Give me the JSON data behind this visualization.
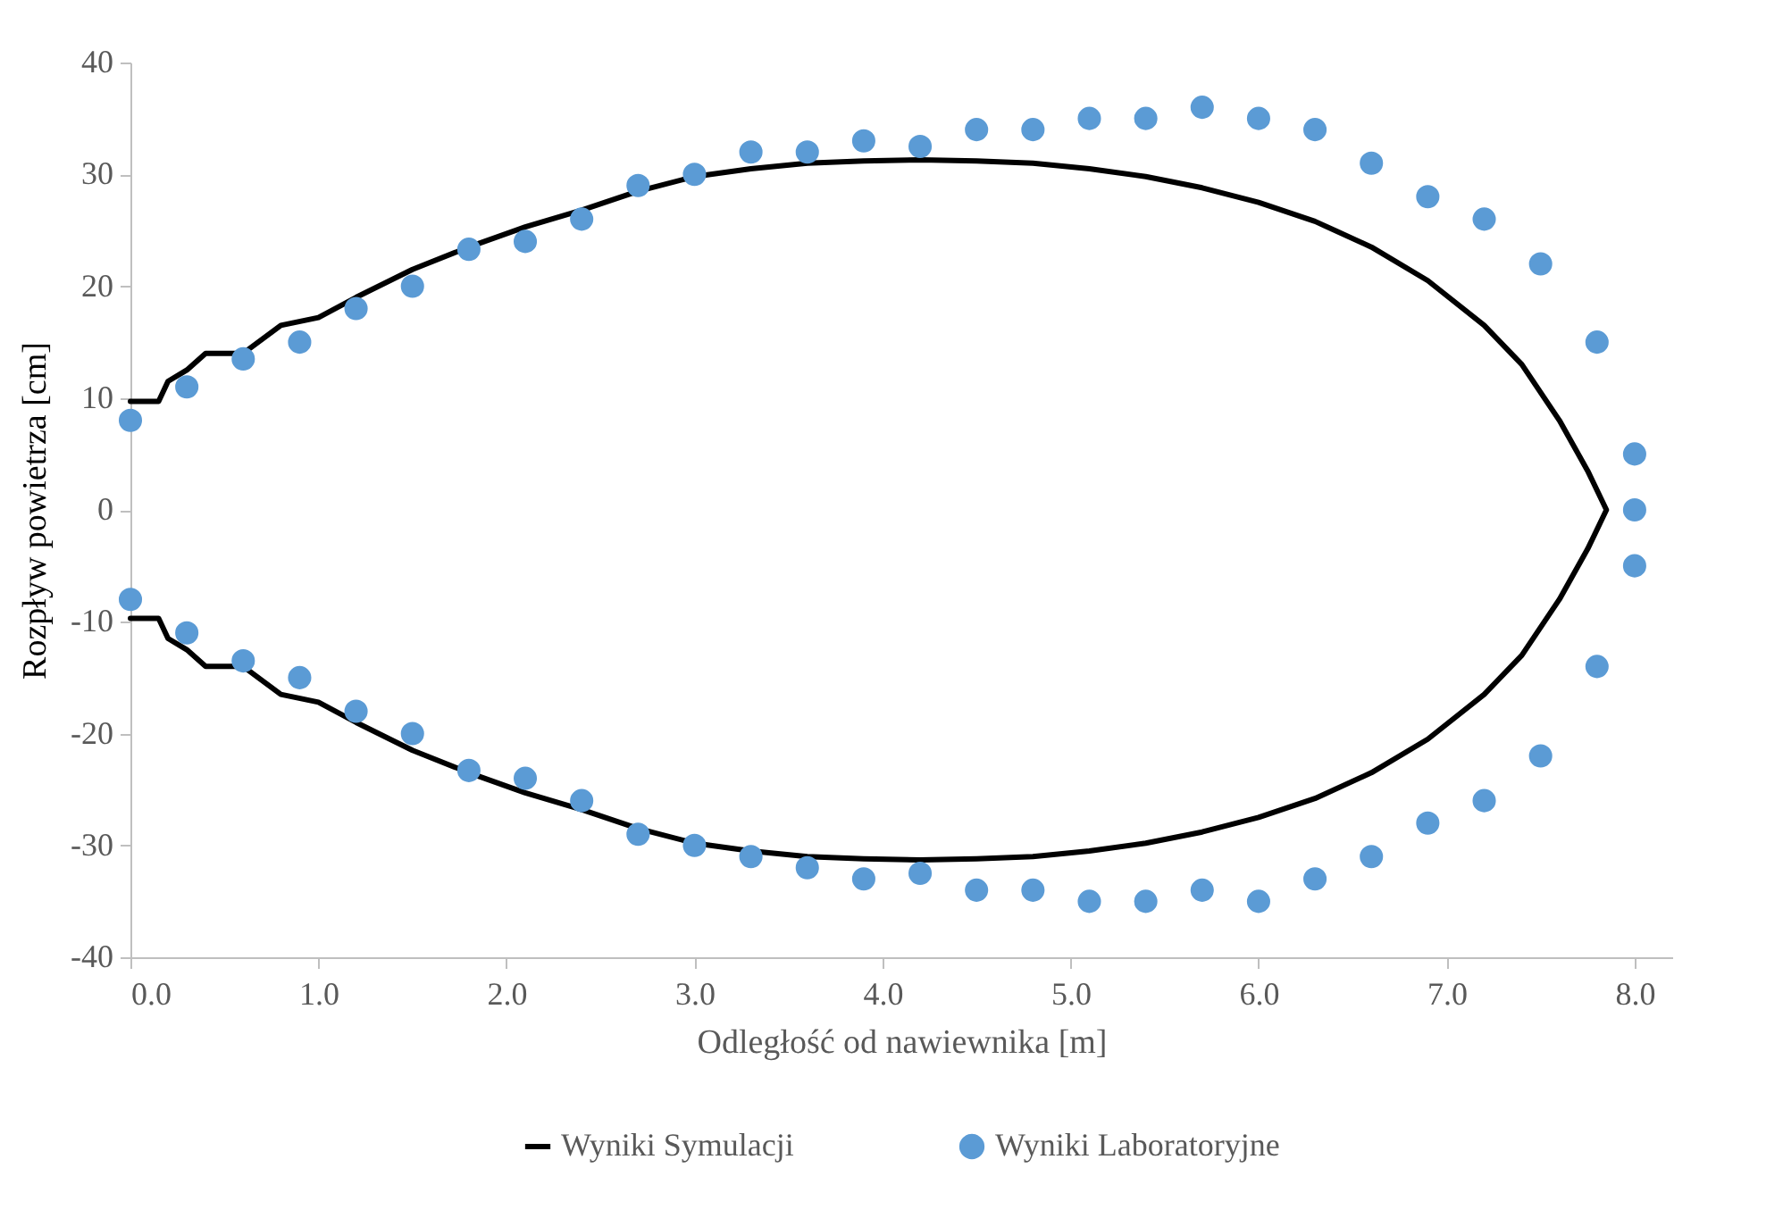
{
  "chart_data": {
    "type": "scatter",
    "xlabel": "Odległość od nawiewnika [m]",
    "ylabel": "Rozpływ powietrza [cm]",
    "xlim": [
      0,
      8.2
    ],
    "xticks": [
      {
        "value": 0,
        "label": "0.0"
      },
      {
        "value": 1,
        "label": "1.0"
      },
      {
        "value": 2,
        "label": "2.0"
      },
      {
        "value": 3,
        "label": "3.0"
      },
      {
        "value": 4,
        "label": "4.0"
      },
      {
        "value": 5,
        "label": "5.0"
      },
      {
        "value": 6,
        "label": "6.0"
      },
      {
        "value": 7,
        "label": "7.0"
      },
      {
        "value": 8,
        "label": "8.0"
      }
    ],
    "ylim": [
      -40,
      40
    ],
    "yticks": [
      -40,
      -30,
      -20,
      -10,
      0,
      10,
      20,
      30,
      40
    ],
    "grid": false,
    "legend": "bottom",
    "series": [
      {
        "name": "Wyniki Symulacji",
        "type": "line",
        "color": "#000000",
        "marker": "none",
        "line_style": "solid",
        "x": [
          0,
          0.15,
          0.2,
          0.3,
          0.4,
          0.6,
          0.8,
          1,
          1.2,
          1.5,
          1.8,
          2.1,
          2.4,
          2.7,
          3,
          3.3,
          3.6,
          3.9,
          4.2,
          4.5,
          4.8,
          5.1,
          5.4,
          5.7,
          6,
          6.3,
          6.6,
          6.9,
          7.2,
          7.4,
          7.6,
          7.75,
          7.85,
          7.75,
          7.6,
          7.4,
          7.2,
          6.9,
          6.6,
          6.3,
          6,
          5.7,
          5.4,
          5.1,
          4.8,
          4.5,
          4.2,
          3.9,
          3.6,
          3.3,
          3,
          2.7,
          2.4,
          2.1,
          1.8,
          1.5,
          1.2,
          1,
          0.8,
          0.6,
          0.4,
          0.3,
          0.2,
          0.15,
          0
        ],
        "values": [
          9.7,
          9.7,
          11.5,
          12.5,
          14,
          14,
          16.5,
          17.2,
          19,
          21.5,
          23.5,
          25.3,
          26.8,
          28.5,
          29.8,
          30.5,
          31,
          31.2,
          31.3,
          31.2,
          31,
          30.5,
          29.8,
          28.8,
          27.5,
          25.8,
          23.5,
          20.5,
          16.5,
          13,
          8,
          3.5,
          0,
          -3.5,
          -8,
          -13,
          -16.5,
          -20.5,
          -23.5,
          -25.8,
          -27.5,
          -28.8,
          -29.8,
          -30.5,
          -31,
          -31.2,
          -31.3,
          -31.2,
          -31,
          -30.5,
          -29.8,
          -28.5,
          -26.8,
          -25.3,
          -23.5,
          -21.5,
          -19,
          -17.2,
          -16.5,
          -14,
          -14,
          -12.5,
          -11.5,
          -9.7,
          -9.7
        ]
      },
      {
        "name": "Wyniki Laboratoryjne",
        "color": "#5b9bd5",
        "marker": "circle",
        "x": [
          0,
          0.3,
          0.6,
          0.9,
          1.2,
          1.5,
          1.8,
          2.1,
          2.4,
          2.7,
          3,
          3.3,
          3.6,
          3.9,
          4.2,
          4.5,
          4.8,
          5.1,
          5.4,
          5.7,
          6,
          6.3,
          6.6,
          6.9,
          7.2,
          7.5,
          7.8,
          8,
          8,
          8,
          7.8,
          7.5,
          7.2,
          6.9,
          6.6,
          6.3,
          6,
          5.7,
          5.4,
          5.1,
          4.8,
          4.5,
          4.2,
          3.9,
          3.6,
          3.3,
          3,
          2.7,
          2.4,
          2.1,
          1.8,
          1.5,
          1.2,
          0.9,
          0.6,
          0.3,
          0
        ],
        "values": [
          8,
          11,
          13.5,
          15,
          18,
          20,
          23.3,
          24,
          26,
          29,
          30,
          32,
          32,
          33,
          32.5,
          34,
          34,
          35,
          35,
          36,
          35,
          34,
          31,
          28,
          26,
          22,
          15,
          5,
          0,
          -5,
          -14,
          -22,
          -26,
          -28,
          -31,
          -33,
          -35,
          -34,
          -35,
          -35,
          -34,
          -34,
          -32.5,
          -33,
          -32,
          -31,
          -30,
          -29,
          -26,
          -24,
          -23.3,
          -20,
          -18,
          -15,
          -13.5,
          -11,
          -8
        ]
      }
    ]
  }
}
